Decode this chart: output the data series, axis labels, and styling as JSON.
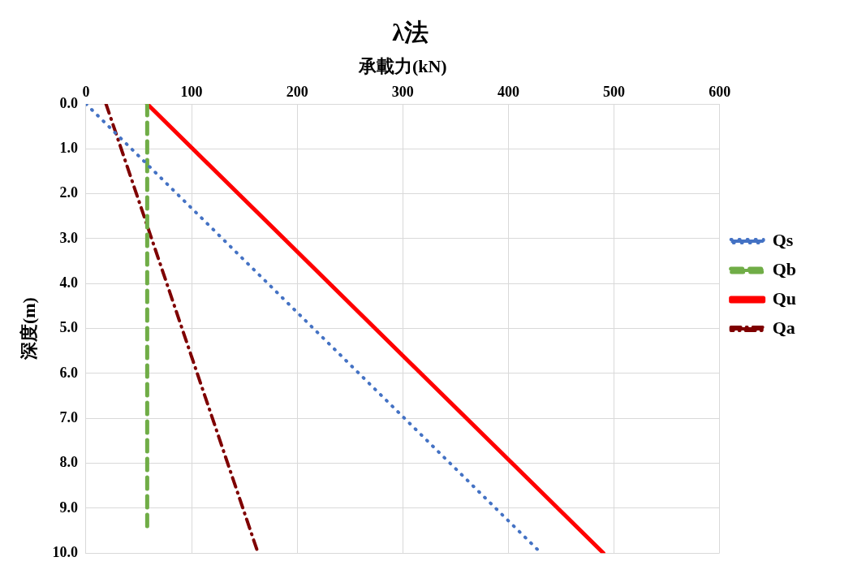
{
  "chart_data": {
    "type": "line",
    "title": "λ法",
    "xlabel": "承載力(kN)",
    "ylabel": "深度(m)",
    "xlim": [
      0,
      600
    ],
    "xticks": [
      0,
      100,
      200,
      300,
      400,
      500,
      600
    ],
    "ylim": [
      10,
      0
    ],
    "yticks": [
      {
        "value": 0,
        "label": "0.0"
      },
      {
        "value": 1,
        "label": "1.0"
      },
      {
        "value": 2,
        "label": "2.0"
      },
      {
        "value": 3,
        "label": "3.0"
      },
      {
        "value": 4,
        "label": "4.0"
      },
      {
        "value": 5,
        "label": "5.0"
      },
      {
        "value": 6,
        "label": "6.0"
      },
      {
        "value": 7,
        "label": "7.0"
      },
      {
        "value": 8,
        "label": "8.0"
      },
      {
        "value": 9,
        "label": "9.0"
      },
      {
        "value": 10,
        "label": "10.0"
      }
    ],
    "grid": true,
    "legend": "right",
    "marker": "none",
    "series": [
      {
        "name": "Qs",
        "color": "#4472c4",
        "line_style": "dotted",
        "x": [
          0,
          431
        ],
        "values": [
          0,
          10
        ]
      },
      {
        "name": "Qb",
        "color": "#70ad47",
        "line_style": "dashed",
        "x": [
          58,
          58
        ],
        "values": [
          0,
          9.5
        ]
      },
      {
        "name": "Qu",
        "color": "#ff0000",
        "line_style": "solid",
        "x": [
          58,
          490
        ],
        "values": [
          0,
          10
        ]
      },
      {
        "name": "Qa",
        "color": "#7f0000",
        "line_style": "dashdot",
        "x": [
          19,
          163
        ],
        "values": [
          0,
          10
        ]
      }
    ]
  }
}
